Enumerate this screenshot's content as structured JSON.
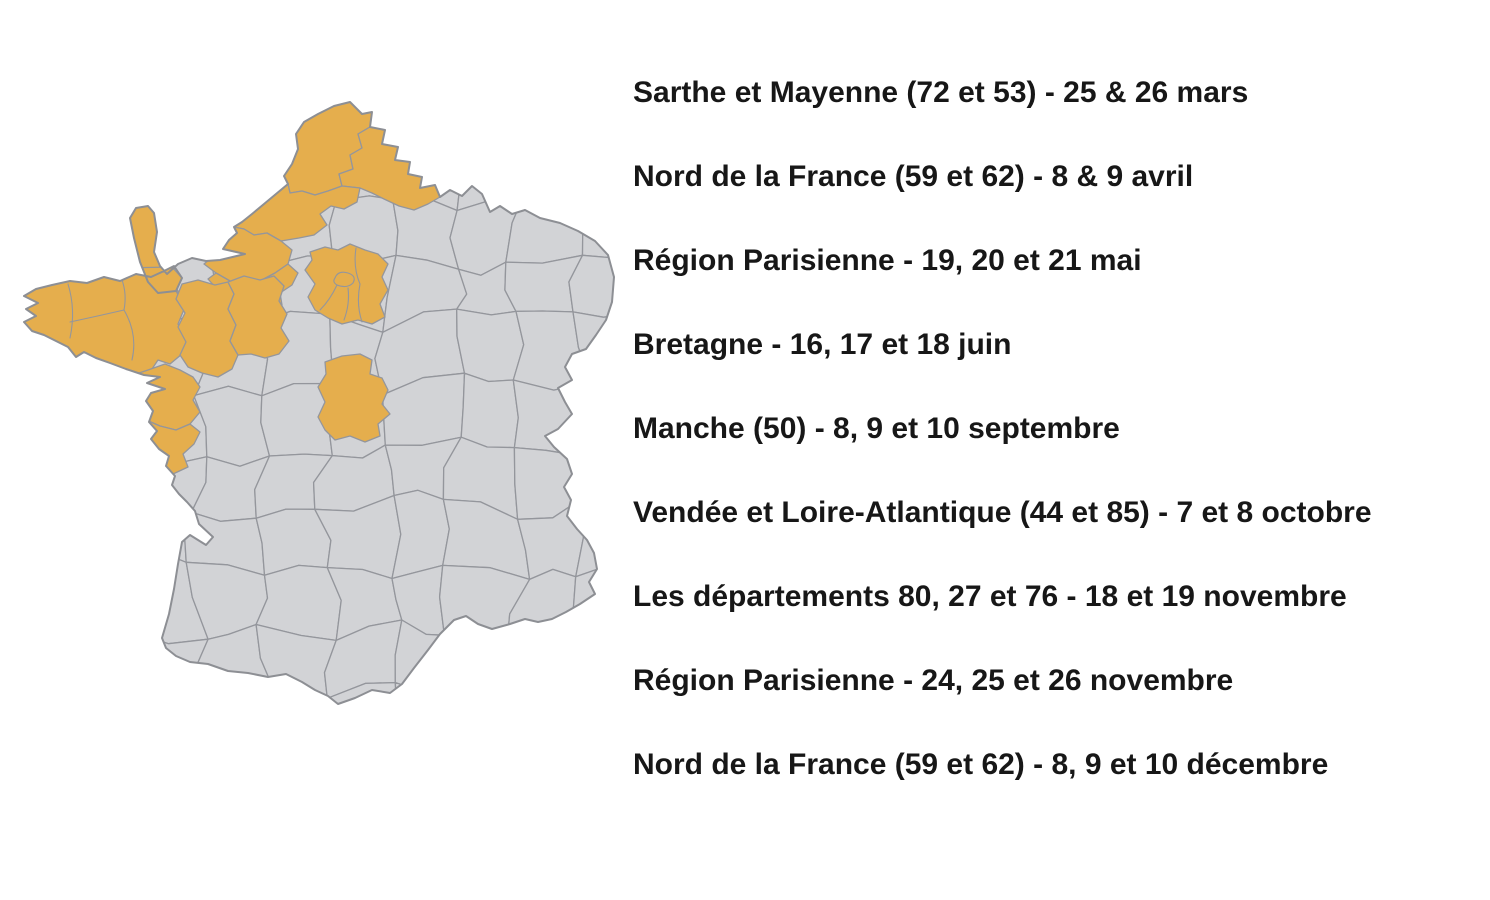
{
  "page": {
    "background": "#ffffff"
  },
  "map": {
    "label": "Carte de France par départements",
    "colors": {
      "highlight": "#e5ae4d",
      "dept_fill": "#d2d3d6",
      "dept_border": "#94969c",
      "outline": "#8d8f94",
      "background": "#ffffff"
    },
    "highlighted_departments": [
      "Pas-de-Calais (62)",
      "Nord (59)",
      "Somme (80)",
      "Seine-Maritime (76)",
      "Eure (27)",
      "Manche (50)",
      "Finistère (29)",
      "Côtes-d'Armor (22)",
      "Morbihan (56)",
      "Ille-et-Vilaine (35)",
      "Mayenne (53)",
      "Sarthe (72)",
      "Loire-Atlantique (44)",
      "Vendée (85)",
      "Région Parisienne",
      "Loiret (45)"
    ]
  },
  "schedule": {
    "text_color": "#171717",
    "items": [
      {
        "label": "Sarthe et Mayenne (72 et 53) - 25 & 26 mars"
      },
      {
        "label": "Nord de la France (59 et 62) - 8 & 9 avril"
      },
      {
        "label": "Région Parisienne - 19, 20 et 21 mai"
      },
      {
        "label": "Bretagne - 16, 17 et 18 juin"
      },
      {
        "label": "Manche (50) - 8, 9 et 10 septembre"
      },
      {
        "label": "Vendée et Loire-Atlantique (44 et 85) - 7 et 8 octobre"
      },
      {
        "label": "Les départements 80, 27 et 76 - 18 et 19 novembre"
      },
      {
        "label": "Région Parisienne - 24, 25 et 26 novembre"
      },
      {
        "label": "Nord de la France (59 et 62) - 8, 9 et 10 décembre"
      }
    ]
  }
}
